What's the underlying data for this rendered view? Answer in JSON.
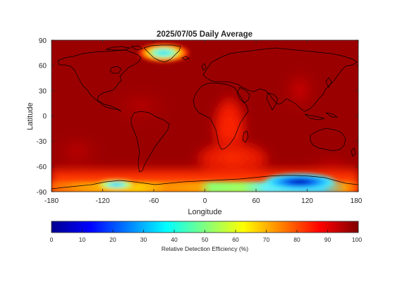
{
  "map": {
    "title": "2025/07/05 Daily Average",
    "xlabel": "Longitude",
    "ylabel": "Latitude",
    "projection": "equirectangular",
    "grid": false,
    "x_ticks": [
      "-180",
      "-120",
      "-60",
      "0",
      "60",
      "120",
      "180"
    ],
    "y_ticks": [
      "90",
      "60",
      "30",
      "0",
      "-30",
      "-60",
      "-90"
    ],
    "xlim": [
      -180,
      180
    ],
    "ylim": [
      -90,
      90
    ],
    "colorbar": {
      "label": "Relative Detection Efficiency (%)",
      "ticks": [
        "0",
        "10",
        "20",
        "30",
        "40",
        "50",
        "60",
        "70",
        "80",
        "90",
        "100"
      ],
      "range": [
        0,
        100
      ],
      "orientation": "horizontal",
      "colormap": "jet"
    },
    "field": {
      "background_value_percent": 97,
      "features": [
        {
          "region": "Greenland ice sheet",
          "min_value_percent": 35,
          "base_color": "#ff2600",
          "min_color": "#40e0ff"
        },
        {
          "region": "Antarctica (West, near -110 lon)",
          "min_value_percent": 32,
          "base_color": "#ffa000",
          "min_color": "#00c8ff"
        },
        {
          "region": "Antarctica (Atlantic/Indian coast)",
          "min_value_percent": 55,
          "base_color": "#ff6a00",
          "min_color": "#7cff90"
        },
        {
          "region": "Antarctica (East plateau, near 110 lon)",
          "min_value_percent": 5,
          "base_color": "#2080ff",
          "min_color": "#0010a0"
        },
        {
          "region": "Southern Africa / South Atlantic",
          "min_value_percent": 88,
          "base_color": "#ff3000",
          "min_color": "#ff1a00"
        },
        {
          "region": "Arabian Sea",
          "min_value_percent": 92,
          "base_color": "#e00000",
          "min_color": "#e00000"
        }
      ],
      "ocean_background_color": "#9b0000",
      "continent_outline_color": "#000000"
    }
  }
}
